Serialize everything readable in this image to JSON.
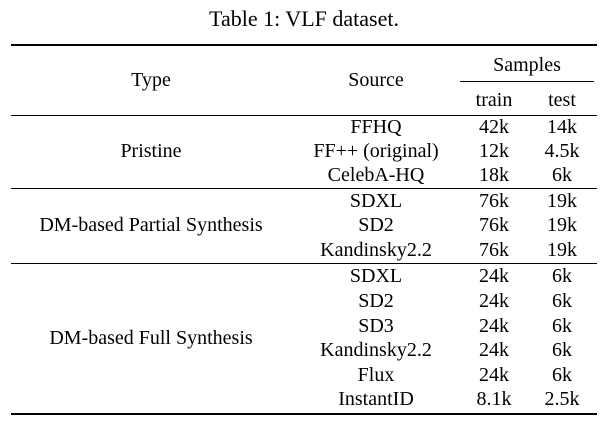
{
  "caption": "Table 1: VLF dataset.",
  "header": {
    "type": "Type",
    "source": "Source",
    "samples": "Samples",
    "train": "train",
    "test": "test"
  },
  "groups": [
    {
      "type": "Pristine",
      "rows": [
        {
          "source": "FFHQ",
          "train": "42k",
          "test": "14k"
        },
        {
          "source": "FF++ (original)",
          "train": "12k",
          "test": "4.5k"
        },
        {
          "source": "CelebA-HQ",
          "train": "18k",
          "test": "6k"
        }
      ]
    },
    {
      "type": "DM-based Partial Synthesis",
      "rows": [
        {
          "source": "SDXL",
          "train": "76k",
          "test": "19k"
        },
        {
          "source": "SD2",
          "train": "76k",
          "test": "19k"
        },
        {
          "source": "Kandinsky2.2",
          "train": "76k",
          "test": "19k"
        }
      ]
    },
    {
      "type": "DM-based Full Synthesis",
      "rows": [
        {
          "source": "SDXL",
          "train": "24k",
          "test": "6k"
        },
        {
          "source": "SD2",
          "train": "24k",
          "test": "6k"
        },
        {
          "source": "SD3",
          "train": "24k",
          "test": "6k"
        },
        {
          "source": "Kandinsky2.2",
          "train": "24k",
          "test": "6k"
        },
        {
          "source": "Flux",
          "train": "24k",
          "test": "6k"
        },
        {
          "source": "InstantID",
          "train": "8.1k",
          "test": "2.5k"
        }
      ]
    }
  ]
}
